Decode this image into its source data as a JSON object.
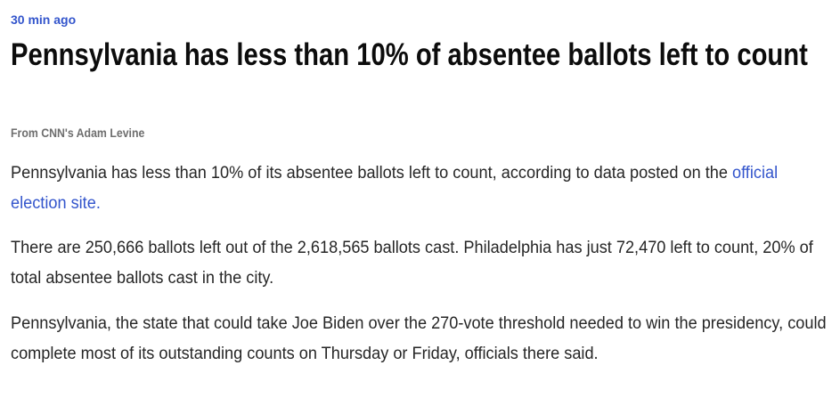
{
  "post": {
    "timestamp": "30 min ago",
    "headline": "Pennsylvania has less than 10% of absentee ballots left to count",
    "byline": "From CNN's Adam Levine",
    "paragraphs": [
      {
        "before_link": "Pennsylvania has less than 10% of its absentee ballots left to count, according to data posted on the ",
        "link_text": "official election site.",
        "after_link": ""
      },
      {
        "text": "There are 250,666 ballots left out of the 2,618,565 ballots cast. Philadelphia has just 72,470 left to count, 20% of total absentee ballots cast in the city."
      },
      {
        "text": "Pennsylvania, the state that could take Joe Biden over the 270-vote threshold needed to win the presidency, could complete most of its outstanding counts on Thursday or Friday, officials there said."
      }
    ]
  },
  "colors": {
    "accent_link": "#3355cc",
    "headline": "#0c0c0c",
    "body_text": "#262626",
    "byline": "#6e6e6e"
  }
}
